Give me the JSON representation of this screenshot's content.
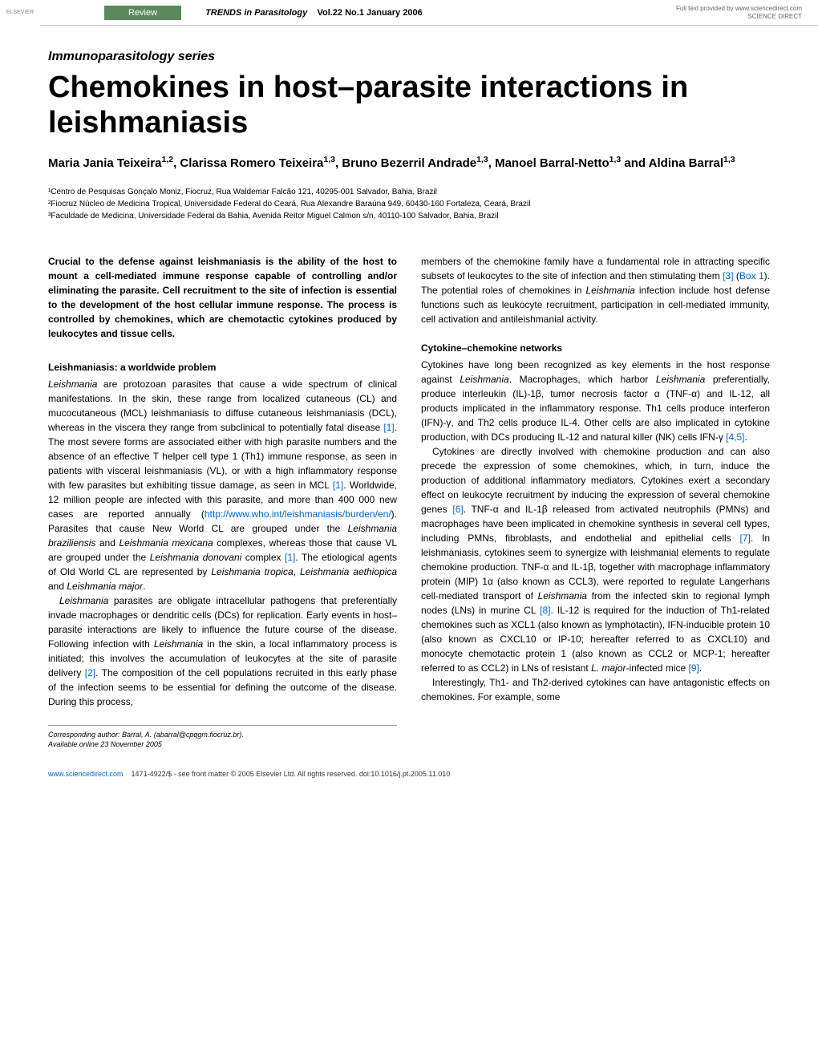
{
  "header": {
    "badge": "Review",
    "journal": "TRENDS in Parasitology",
    "issue": "Vol.22 No.1 January 2006",
    "provider_line1": "Full text provided by www.sciencedirect.com",
    "provider_line2": "SCIENCE DIRECT"
  },
  "series": "Immunoparasitology series",
  "title": "Chemokines in host–parasite interactions in leishmaniasis",
  "authors_html": "Maria Jania Teixeira<sup>1,2</sup>, Clarissa Romero Teixeira<sup>1,3</sup>, Bruno Bezerril Andrade<sup>1,3</sup>, Manoel Barral-Netto<sup>1,3</sup> and Aldina Barral<sup>1,3</sup>",
  "affiliations": [
    "¹Centro de Pesquisas Gonçalo Moniz, Fiocruz, Rua Waldemar Falcão 121, 40295-001 Salvador, Bahia, Brazil",
    "²Fiocruz Núcleo de Medicina Tropical, Universidade Federal do Ceará, Rua Alexandre Baraúna 949, 60430-160 Fortaleza, Ceará, Brazil",
    "³Faculdade de Medicina, Universidade Federal da Bahia, Avenida Reitor Miguel Calmon s/n, 40110-100 Salvador, Bahia, Brazil"
  ],
  "abstract": "Crucial to the defense against leishmaniasis is the ability of the host to mount a cell-mediated immune response capable of controlling and/or eliminating the parasite. Cell recruitment to the site of infection is essential to the development of the host cellular immune response. The process is controlled by chemokines, which are chemotactic cytokines produced by leukocytes and tissue cells.",
  "col1": {
    "head1": "Leishmaniasis: a worldwide problem",
    "p1": "Leishmania are protozoan parasites that cause a wide spectrum of clinical manifestations. In the skin, these range from localized cutaneous (CL) and mucocutaneous (MCL) leishmaniasis to diffuse cutaneous leishmaniasis (DCL), whereas in the viscera they range from subclinical to potentially fatal disease [1]. The most severe forms are associated either with high parasite numbers and the absence of an effective T helper cell type 1 (Th1) immune response, as seen in patients with visceral leishmaniasis (VL), or with a high inflammatory response with few parasites but exhibiting tissue damage, as seen in MCL [1]. Worldwide, 12 million people are infected with this parasite, and more than 400 000 new cases are reported annually (http://www.who.int/leishmaniasis/burden/en/). Parasites that cause New World CL are grouped under the Leishmania braziliensis and Leishmania mexicana complexes, whereas those that cause VL are grouped under the Leishmania donovani complex [1]. The etiological agents of Old World CL are represented by Leishmania tropica, Leishmania aethiopica and Leishmania major.",
    "p2": "Leishmania parasites are obligate intracellular pathogens that preferentially invade macrophages or dendritic cells (DCs) for replication. Early events in host–parasite interactions are likely to influence the future course of the disease. Following infection with Leishmania in the skin, a local inflammatory process is initiated; this involves the accumulation of leukocytes at the site of parasite delivery [2]. The composition of the cell populations recruited in this early phase of the infection seems to be essential for defining the outcome of the disease. During this process,"
  },
  "col2": {
    "p0": "members of the chemokine family have a fundamental role in attracting specific subsets of leukocytes to the site of infection and then stimulating them [3] (Box 1). The potential roles of chemokines in Leishmania infection include host defense functions such as leukocyte recruitment, participation in cell-mediated immunity, cell activation and antileishmanial activity.",
    "head1": "Cytokine–chemokine networks",
    "p1": "Cytokines have long been recognized as key elements in the host response against Leishmania. Macrophages, which harbor Leishmania preferentially, produce interleukin (IL)-1β, tumor necrosis factor α (TNF-α) and IL-12, all products implicated in the inflammatory response. Th1 cells produce interferon (IFN)-γ, and Th2 cells produce IL-4. Other cells are also implicated in cytokine production, with DCs producing IL-12 and natural killer (NK) cells IFN-γ [4,5].",
    "p2": "Cytokines are directly involved with chemokine production and can also precede the expression of some chemokines, which, in turn, induce the production of additional inflammatory mediators. Cytokines exert a secondary effect on leukocyte recruitment by inducing the expression of several chemokine genes [6]. TNF-α and IL-1β released from activated neutrophils (PMNs) and macrophages have been implicated in chemokine synthesis in several cell types, including PMNs, fibroblasts, and endothelial and epithelial cells [7]. In leishmaniasis, cytokines seem to synergize with leishmanial elements to regulate chemokine production. TNF-α and IL-1β, together with macrophage inflammatory protein (MIP) 1α (also known as CCL3), were reported to regulate Langerhans cell-mediated transport of Leishmania from the infected skin to regional lymph nodes (LNs) in murine CL [8]. IL-12 is required for the induction of Th1-related chemokines such as XCL1 (also known as lymphotactin), IFN-inducible protein 10 (also known as CXCL10 or IP-10; hereafter referred to as CXCL10) and monocyte chemotactic protein 1 (also known as CCL2 or MCP-1; hereafter referred to as CCL2) in LNs of resistant L. major-infected mice [9].",
    "p3": "Interestingly, Th1- and Th2-derived cytokines can have antagonistic effects on chemokines. For example, some"
  },
  "footer": {
    "corresponding": "Corresponding author: Barral, A. (abarral@cpqgm.fiocruz.br).",
    "available": "Available online 23 November 2005"
  },
  "bottom": {
    "url": "www.sciencedirect.com",
    "rights": "1471-4922/$ - see front matter © 2005 Elsevier Ltd. All rights reserved. doi:10.1016/j.pt.2005.11.010"
  }
}
